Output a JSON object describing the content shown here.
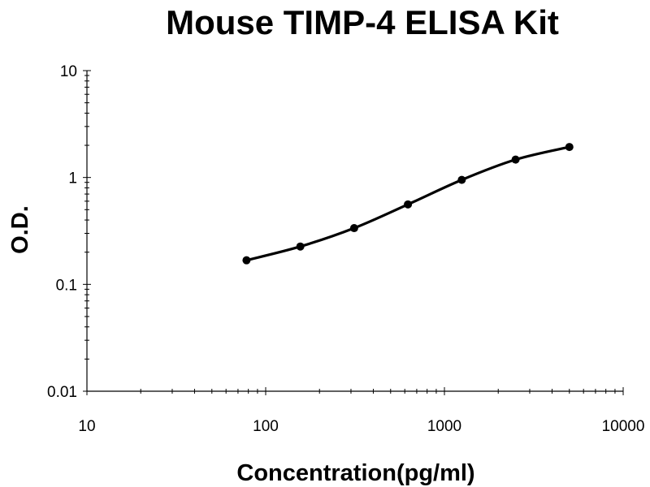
{
  "chart_data": {
    "type": "line",
    "title": "Mouse TIMP-4 ELISA Kit",
    "xlabel": "Concentration(pg/ml)",
    "ylabel": "O.D.",
    "x_scale": "log",
    "y_scale": "log",
    "xlim": [
      10,
      10000
    ],
    "ylim": [
      0.01,
      10
    ],
    "x_ticks": [
      "10",
      "100",
      "1000",
      "10000"
    ],
    "y_ticks": [
      "0.01",
      "0.1",
      "1",
      "10"
    ],
    "grid": false,
    "legend": "none",
    "line_color": "#000000",
    "series": [
      {
        "x": [
          78.125,
          156.25,
          312.5,
          625,
          1250,
          2500,
          5000
        ],
        "y": [
          0.168,
          0.226,
          0.336,
          0.56,
          0.95,
          1.47,
          1.93
        ]
      }
    ]
  }
}
